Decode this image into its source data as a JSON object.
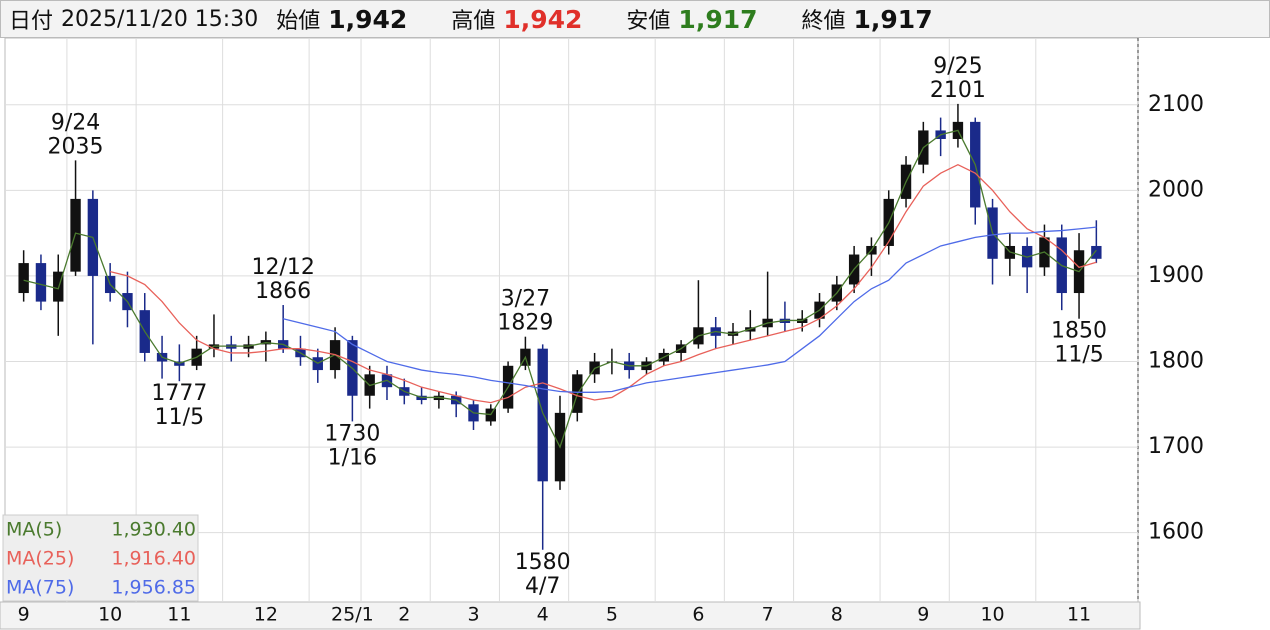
{
  "header": {
    "date_label": "日付",
    "datetime": "2025/11/20 15:30",
    "fields": [
      {
        "label": "始値",
        "value": "1,942",
        "color": "#111111"
      },
      {
        "label": "高値",
        "value": "1,942",
        "color": "#e0302a"
      },
      {
        "label": "安値",
        "value": "1,917",
        "color": "#2e7d1e"
      },
      {
        "label": "終値",
        "value": "1,917",
        "color": "#111111"
      }
    ]
  },
  "chart_data": {
    "type": "candlestick",
    "up_color": "#111111",
    "down_color": "#1a2a8a",
    "categories": [
      "9",
      null,
      null,
      null,
      null,
      "10",
      null,
      null,
      null,
      "11",
      null,
      null,
      null,
      null,
      "12",
      null,
      null,
      null,
      null,
      "25/1",
      null,
      null,
      "2",
      null,
      null,
      null,
      "3",
      null,
      null,
      null,
      "4",
      null,
      null,
      null,
      "5",
      null,
      null,
      null,
      null,
      "6",
      null,
      null,
      null,
      "7",
      null,
      null,
      null,
      "8",
      null,
      null,
      null,
      null,
      "9",
      null,
      null,
      null,
      "10",
      null,
      null,
      null,
      null,
      "11",
      null
    ],
    "open": [
      1880,
      1915,
      1870,
      1905,
      1990,
      1900,
      1880,
      1860,
      1810,
      1800,
      1795,
      1815,
      1820,
      1815,
      1820,
      1825,
      1815,
      1805,
      1790,
      1825,
      1760,
      1785,
      1770,
      1760,
      1755,
      1760,
      1750,
      1730,
      1745,
      1795,
      1815,
      1660,
      1740,
      1785,
      1800,
      1800,
      1790,
      1800,
      1810,
      1820,
      1840,
      1830,
      1835,
      1840,
      1850,
      1845,
      1850,
      1870,
      1890,
      1925,
      1935,
      1990,
      2030,
      2070,
      2060,
      2080,
      1980,
      1920,
      1935,
      1910,
      1945,
      1880,
      1935
    ],
    "high": [
      1930,
      1925,
      1925,
      2035,
      2000,
      1915,
      1905,
      1880,
      1830,
      1820,
      1830,
      1855,
      1830,
      1830,
      1835,
      1866,
      1830,
      1815,
      1840,
      1830,
      1795,
      1795,
      1780,
      1770,
      1765,
      1765,
      1755,
      1750,
      1800,
      1829,
      1820,
      1760,
      1790,
      1810,
      1815,
      1810,
      1805,
      1815,
      1825,
      1895,
      1852,
      1845,
      1860,
      1905,
      1870,
      1860,
      1880,
      1900,
      1935,
      1945,
      2000,
      2040,
      2080,
      2085,
      2101,
      2085,
      1990,
      1950,
      1945,
      1960,
      1960,
      1950,
      1965
    ],
    "low": [
      1870,
      1860,
      1830,
      1900,
      1820,
      1870,
      1840,
      1800,
      1780,
      1777,
      1790,
      1805,
      1800,
      1805,
      1800,
      1810,
      1795,
      1775,
      1780,
      1730,
      1745,
      1755,
      1750,
      1750,
      1745,
      1735,
      1720,
      1725,
      1740,
      1790,
      1580,
      1650,
      1730,
      1775,
      1785,
      1780,
      1785,
      1795,
      1800,
      1815,
      1815,
      1820,
      1825,
      1830,
      1835,
      1835,
      1840,
      1860,
      1880,
      1900,
      1925,
      1980,
      2020,
      2040,
      2050,
      1960,
      1890,
      1900,
      1880,
      1900,
      1860,
      1850,
      1915
    ],
    "close": [
      1915,
      1870,
      1905,
      1990,
      1900,
      1880,
      1860,
      1810,
      1800,
      1795,
      1815,
      1820,
      1815,
      1820,
      1825,
      1815,
      1805,
      1790,
      1825,
      1760,
      1785,
      1770,
      1760,
      1755,
      1760,
      1750,
      1730,
      1745,
      1795,
      1815,
      1660,
      1740,
      1785,
      1800,
      1800,
      1790,
      1800,
      1810,
      1820,
      1840,
      1830,
      1835,
      1840,
      1850,
      1845,
      1850,
      1870,
      1890,
      1925,
      1935,
      1990,
      2030,
      2070,
      2060,
      2080,
      1980,
      1920,
      1935,
      1910,
      1945,
      1880,
      1930,
      1920
    ],
    "series": [
      {
        "name": "MA(5)",
        "color": "#4a7a2e",
        "legend_value": "1,930.40",
        "values": [
          1895,
          1890,
          1885,
          1950,
          1945,
          1890,
          1870,
          1835,
          1805,
          1798,
          1805,
          1818,
          1818,
          1818,
          1822,
          1820,
          1810,
          1798,
          1808,
          1792,
          1772,
          1778,
          1765,
          1758,
          1758,
          1755,
          1740,
          1738,
          1770,
          1805,
          1740,
          1700,
          1762,
          1792,
          1800,
          1795,
          1795,
          1805,
          1815,
          1830,
          1835,
          1832,
          1838,
          1845,
          1848,
          1848,
          1860,
          1880,
          1908,
          1930,
          1962,
          2010,
          2050,
          2065,
          2070,
          2030,
          1950,
          1928,
          1922,
          1928,
          1912,
          1905,
          1930
        ]
      },
      {
        "name": "MA(25)",
        "color": "#e8615a",
        "legend_value": "1,916.40",
        "values": [
          null,
          null,
          null,
          null,
          null,
          1905,
          1900,
          1890,
          1870,
          1845,
          1825,
          1815,
          1810,
          1810,
          1812,
          1815,
          1815,
          1812,
          1808,
          1800,
          1790,
          1785,
          1778,
          1770,
          1765,
          1760,
          1755,
          1752,
          1758,
          1770,
          1775,
          1768,
          1760,
          1755,
          1758,
          1770,
          1785,
          1795,
          1800,
          1808,
          1815,
          1820,
          1825,
          1830,
          1835,
          1840,
          1850,
          1865,
          1885,
          1910,
          1940,
          1975,
          2005,
          2020,
          2030,
          2020,
          2000,
          1975,
          1955,
          1945,
          1930,
          1910,
          1916
        ]
      },
      {
        "name": "MA(75)",
        "color": "#4f6be8",
        "legend_value": "1,956.85",
        "values": [
          null,
          null,
          null,
          null,
          null,
          null,
          null,
          null,
          null,
          null,
          null,
          null,
          null,
          null,
          null,
          1850,
          1845,
          1840,
          1835,
          1820,
          1810,
          1800,
          1795,
          1790,
          1787,
          1785,
          1782,
          1778,
          1775,
          1772,
          1768,
          1765,
          1764,
          1764,
          1765,
          1770,
          1775,
          1778,
          1781,
          1784,
          1787,
          1790,
          1793,
          1796,
          1800,
          1815,
          1830,
          1850,
          1870,
          1885,
          1895,
          1915,
          1925,
          1935,
          1940,
          1945,
          1948,
          1950,
          1950,
          1952,
          1953,
          1955,
          1957
        ]
      }
    ],
    "annotations": [
      {
        "date": "9/24",
        "value": 2035
      },
      {
        "date": "11/5",
        "value": 1777
      },
      {
        "date": "12/12",
        "value": 1866
      },
      {
        "date": "1/16",
        "value": 1730
      },
      {
        "date": "3/27",
        "value": 1829
      },
      {
        "date": "4/7",
        "value": 1580
      },
      {
        "date": "9/25",
        "value": 2101
      },
      {
        "date": "11/5",
        "value": 1850
      }
    ],
    "ylim": [
      1519,
      2178
    ],
    "yticks": [
      1600,
      1700,
      1800,
      1900,
      2000,
      2100
    ],
    "grid": true
  }
}
